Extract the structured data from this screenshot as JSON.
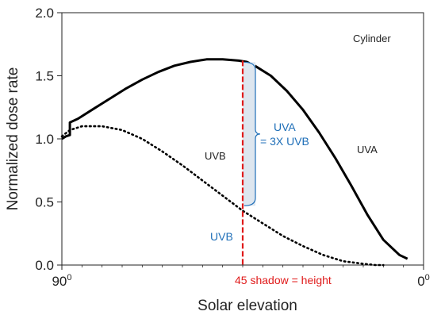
{
  "chart_data": {
    "type": "line",
    "xlabel": "Solar elevation",
    "ylabel": "Normalized dose rate",
    "x_reversed": true,
    "xlim": [
      90,
      0
    ],
    "ylim": [
      0.0,
      2.0
    ],
    "x_ticks": [
      {
        "value": 90,
        "label": "90",
        "sup": "0"
      },
      {
        "value": 0,
        "label": "0",
        "sup": "0"
      }
    ],
    "y_ticks": [
      "0.0",
      "0.5",
      "1.0",
      "1.5",
      "2.0"
    ],
    "grid": false,
    "series": [
      {
        "color": "#000000",
        "style": "solid",
        "x": [
          90,
          89,
          88,
          88,
          86,
          82,
          78,
          74,
          70,
          66,
          62,
          58,
          54,
          50,
          46,
          44,
          42,
          38,
          34,
          30,
          26,
          22,
          18,
          14,
          10,
          6,
          4
        ],
        "y": [
          1.0,
          1.02,
          1.03,
          1.13,
          1.16,
          1.24,
          1.32,
          1.4,
          1.47,
          1.53,
          1.58,
          1.61,
          1.63,
          1.63,
          1.62,
          1.61,
          1.58,
          1.5,
          1.38,
          1.23,
          1.05,
          0.85,
          0.63,
          0.4,
          0.2,
          0.08,
          0.05
        ]
      },
      {
        "color": "#000000",
        "style": "dotted",
        "x": [
          90,
          88,
          85,
          80,
          75,
          70,
          65,
          60,
          55,
          50,
          45,
          40,
          35,
          30,
          25,
          20,
          15,
          12,
          10
        ],
        "y": [
          1.02,
          1.07,
          1.1,
          1.1,
          1.07,
          1.0,
          0.9,
          0.79,
          0.67,
          0.55,
          0.43,
          0.33,
          0.23,
          0.15,
          0.08,
          0.03,
          0.01,
          0.0,
          0.0
        ]
      }
    ],
    "annotations": {
      "cylinder": "Cylinder",
      "uvb_curve_label": "UVB",
      "uva_curve_label": "UVA",
      "uva_bracket_label_1": "UVA",
      "uva_bracket_label_2": "= 3X UVB",
      "uvb_marker_label": "UVB",
      "shadow_line_label": "45 shadow = height"
    },
    "marker_line": {
      "x": 45,
      "y_top": 1.62,
      "y_mid": 0.47,
      "color_top": "#e01a1a",
      "color_bottom": "#e01a1a"
    },
    "colors": {
      "blue": "#1f6fb8",
      "red": "#e01a1a",
      "bracket_fill": "#dde6ef"
    }
  }
}
